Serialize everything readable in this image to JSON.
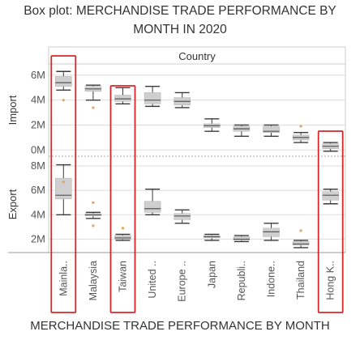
{
  "title": "Box plot: MERCHANDISE TRADE PERFORMANCE BY MONTH IN 2020",
  "caption": "MERCHANDISE TRADE PERFORMANCE BY MONTH",
  "colors": {
    "box": "#cfcfcf",
    "whisker": "#3a3a3a",
    "median": "#555555",
    "highlight": "#d62728",
    "grid": "#dddddd",
    "divider": "#999999",
    "outlier": "#e8a25a"
  },
  "chart_data": {
    "type": "boxplot",
    "column_header": "Country",
    "categories": [
      "Mainla..",
      "Malaysia",
      "Taiwan",
      "United ..",
      "Europe ..",
      "Japan",
      "Republi..",
      "Indone..",
      "Thailand",
      "Hong K.."
    ],
    "highlighted": [
      "Mainla..",
      "Taiwan",
      "Hong K.."
    ],
    "rows": [
      {
        "name": "Import",
        "ticks": [
          {
            "value": 0,
            "label": "0M"
          },
          {
            "value": 2,
            "label": "2M"
          },
          {
            "value": 4,
            "label": "4M"
          },
          {
            "value": 6,
            "label": "6M"
          }
        ],
        "ylim": [
          -0.5,
          6.9
        ],
        "boxes": [
          {
            "min": 4.8,
            "q1": 5.1,
            "median": 5.4,
            "q3": 5.9,
            "max": 6.3,
            "outliers": [
              4.0
            ]
          },
          {
            "min": 4.0,
            "q1": 4.7,
            "median": 4.9,
            "q3": 5.1,
            "max": 5.2,
            "outliers": [
              3.4
            ]
          },
          {
            "min": 3.7,
            "q1": 3.9,
            "median": 4.1,
            "q3": 4.4,
            "max": 5.0,
            "outliers": []
          },
          {
            "min": 3.5,
            "q1": 3.7,
            "median": 4.0,
            "q3": 4.6,
            "max": 5.1,
            "outliers": []
          },
          {
            "min": 3.4,
            "q1": 3.6,
            "median": 3.9,
            "q3": 4.2,
            "max": 4.6,
            "outliers": []
          },
          {
            "min": 1.5,
            "q1": 1.8,
            "median": 1.95,
            "q3": 2.1,
            "max": 2.5,
            "outliers": []
          },
          {
            "min": 1.1,
            "q1": 1.5,
            "median": 1.7,
            "q3": 1.9,
            "max": 2.0,
            "outliers": []
          },
          {
            "min": 1.1,
            "q1": 1.4,
            "median": 1.5,
            "q3": 1.9,
            "max": 2.0,
            "outliers": []
          },
          {
            "min": 0.6,
            "q1": 0.8,
            "median": 1.0,
            "q3": 1.2,
            "max": 1.4,
            "outliers": [
              1.9
            ]
          },
          {
            "min": -0.1,
            "q1": 0.1,
            "median": 0.3,
            "q3": 0.5,
            "max": 0.6,
            "outliers": []
          }
        ]
      },
      {
        "name": "Export",
        "ticks": [
          {
            "value": 2,
            "label": "2M"
          },
          {
            "value": 4,
            "label": "4M"
          },
          {
            "value": 6,
            "label": "6M"
          },
          {
            "value": 8,
            "label": "8M"
          }
        ],
        "ylim": [
          0.9,
          8.8
        ],
        "boxes": [
          {
            "min": 4.0,
            "q1": 5.3,
            "median": 5.6,
            "q3": 7.0,
            "max": 8.1,
            "outliers": [
              6.7
            ]
          },
          {
            "min": 3.7,
            "q1": 3.9,
            "median": 4.0,
            "q3": 4.1,
            "max": 4.2,
            "outliers": [
              5.0,
              3.1
            ]
          },
          {
            "min": 1.9,
            "q1": 2.0,
            "median": 2.1,
            "q3": 2.3,
            "max": 2.4,
            "outliers": [
              2.9
            ]
          },
          {
            "min": 4.0,
            "q1": 4.2,
            "median": 4.5,
            "q3": 5.1,
            "max": 6.1,
            "outliers": []
          },
          {
            "min": 3.3,
            "q1": 3.6,
            "median": 3.9,
            "q3": 4.1,
            "max": 4.4,
            "outliers": []
          },
          {
            "min": 1.9,
            "q1": 2.1,
            "median": 2.2,
            "q3": 2.3,
            "max": 2.4,
            "outliers": []
          },
          {
            "min": 1.8,
            "q1": 1.9,
            "median": 2.0,
            "q3": 2.2,
            "max": 2.3,
            "outliers": []
          },
          {
            "min": 1.9,
            "q1": 2.2,
            "median": 2.6,
            "q3": 2.9,
            "max": 3.3,
            "outliers": []
          },
          {
            "min": 1.3,
            "q1": 1.5,
            "median": 1.6,
            "q3": 1.8,
            "max": 1.9,
            "outliers": [
              2.7
            ]
          },
          {
            "min": 4.9,
            "q1": 5.2,
            "median": 5.6,
            "q3": 5.9,
            "max": 6.1,
            "outliers": []
          }
        ]
      }
    ]
  }
}
